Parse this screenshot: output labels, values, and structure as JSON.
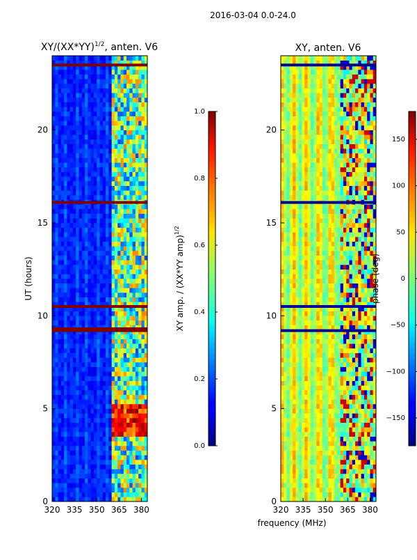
{
  "figure_title": "2016-03-04 0.0-24.0",
  "chart_data": [
    {
      "type": "heatmap",
      "title_main": "XY/(XX*YY)",
      "title_exp": "1/2",
      "title_tail": ", anten. V6",
      "xlabel": "",
      "ylabel": "UT (hours)",
      "xlim": [
        320,
        384
      ],
      "ylim": [
        0,
        24
      ],
      "xticks": [
        320,
        335,
        350,
        365,
        380
      ],
      "yticks": [
        0,
        5,
        10,
        15,
        20
      ],
      "colormap": "jet",
      "colorbar": {
        "label_main": "XY amp. / (XX*YY amp)",
        "label_exp": "1/2",
        "range": [
          0.0,
          1.0
        ],
        "ticks": [
          0.0,
          0.2,
          0.4,
          0.6,
          0.8,
          1.0
        ],
        "tick_labels": [
          "0.0",
          "0.2",
          "0.4",
          "0.6",
          "0.8",
          "1.0"
        ]
      },
      "flagged_rows_ut": [
        9.2,
        9.3,
        10.5,
        16.1,
        23.5
      ],
      "high_band_mhz": [
        361,
        384
      ]
    },
    {
      "type": "heatmap",
      "title": "XY, anten. V6",
      "xlabel": "frequency (MHz)",
      "ylabel": "",
      "xlim": [
        320,
        384
      ],
      "ylim": [
        0,
        24
      ],
      "xticks": [
        320,
        335,
        350,
        365,
        380
      ],
      "yticks": [
        0,
        5,
        10,
        15,
        20
      ],
      "colormap": "jet",
      "colorbar": {
        "label": "phase (deg)",
        "range": [
          -180,
          180
        ],
        "ticks": [
          -150,
          -100,
          -50,
          0,
          50,
          100,
          150
        ],
        "tick_labels": [
          "−150",
          "−100",
          "−50",
          "0",
          "50",
          "100",
          "150"
        ]
      },
      "flagged_rows_ut": [
        9.2,
        10.5,
        16.1,
        23.5
      ]
    }
  ]
}
